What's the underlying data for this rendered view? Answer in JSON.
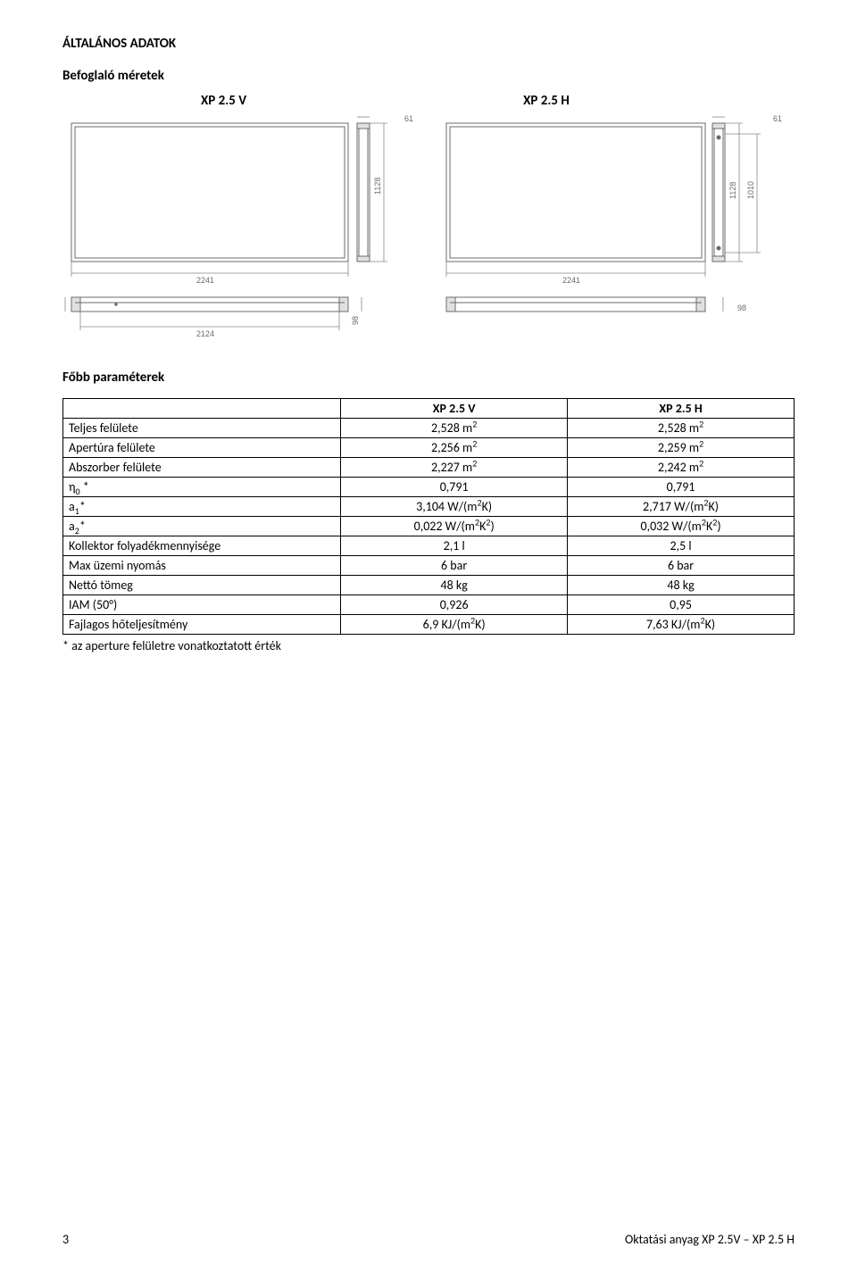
{
  "headings": {
    "main": "ÁLTALÁNOS ADATOK",
    "sub": "Befoglaló méretek",
    "params": "Főbb paraméterek"
  },
  "drawing_labels": {
    "left": "XP 2.5 V",
    "right": "XP 2.5 H"
  },
  "dims": {
    "left": {
      "width_top": "2241",
      "width_bottom": "2124",
      "height": "1128",
      "side_w": "61",
      "bottom_h": "98"
    },
    "right": {
      "width_top": "2241",
      "height_outer": "1128",
      "height_inner": "1010",
      "side_w": "61",
      "bottom_h": "98"
    }
  },
  "table": {
    "headers": {
      "col1": "",
      "col2": "XP 2.5 V",
      "col3": "XP 2.5 H"
    },
    "rows": [
      {
        "label_html": "Teljes felülete",
        "v1_html": "2,528 m<sup>2</sup>",
        "v2_html": "2,528 m<sup>2</sup>"
      },
      {
        "label_html": "Apertúra felülete",
        "v1_html": "2,256 m<sup>2</sup>",
        "v2_html": "2,259 m<sup>2</sup>"
      },
      {
        "label_html": "Abszorber felülete",
        "v1_html": "2,227 m<sup>2</sup>",
        "v2_html": "2,242 m<sup>2</sup>"
      },
      {
        "label_html": "η<sub>0</sub> *",
        "v1_html": "0,791",
        "v2_html": "0,791"
      },
      {
        "label_html": "a<sub>1</sub>*",
        "v1_html": "3,104 W/(m<sup>2</sup>K)",
        "v2_html": "2,717 W/(m<sup>2</sup>K)"
      },
      {
        "label_html": "a<sub>2</sub>*",
        "v1_html": "0,022 W/(m<sup>2</sup>K<sup>2</sup>)",
        "v2_html": "0,032 W/(m<sup>2</sup>K<sup>2</sup>)"
      },
      {
        "label_html": "Kollektor folyadékmennyisége",
        "v1_html": "2,1 l",
        "v2_html": "2,5 l"
      },
      {
        "label_html": "Max üzemi nyomás",
        "v1_html": "6 bar",
        "v2_html": "6 bar"
      },
      {
        "label_html": "Nettó tömeg",
        "v1_html": "48 kg",
        "v2_html": "48 kg"
      },
      {
        "label_html": "IAM (50°)",
        "v1_html": "0,926",
        "v2_html": "0,95"
      },
      {
        "label_html": "Fajlagos hőteljesítmény",
        "v1_html": "6,9 KJ/(m<sup>2</sup>K)",
        "v2_html": "7,63 KJ/(m<sup>2</sup>K)"
      }
    ],
    "footnote": "* az aperture felületre vonatkoztatott érték"
  },
  "footer": {
    "page": "3",
    "doc": "Oktatási anyag XP 2.5V – XP 2.5 H"
  },
  "colors": {
    "line": "#6b6b6b",
    "light": "#bdbdbd",
    "text": "#6b6b6b"
  }
}
